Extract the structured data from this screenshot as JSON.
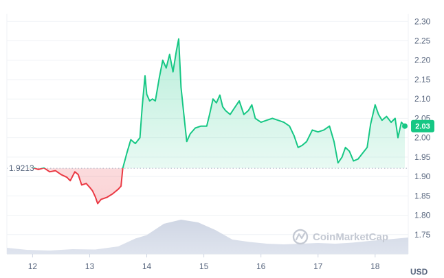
{
  "chart_data": {
    "type": "line",
    "currency": "USD",
    "x_labels": [
      "12",
      "13",
      "14",
      "15",
      "16",
      "17",
      "18"
    ],
    "y_ticks": [
      1.75,
      1.8,
      1.85,
      1.9,
      1.95,
      2.0,
      2.05,
      2.1,
      2.15,
      2.2,
      2.25,
      2.3
    ],
    "y_tick_labels": [
      "1.75",
      "1.80",
      "1.85",
      "1.90",
      "1.95",
      "2.00",
      "2.05",
      "2.10",
      "2.15",
      "2.20",
      "2.25",
      "2.30"
    ],
    "ylim": [
      1.7,
      2.32
    ],
    "xlim": [
      11.55,
      18.58
    ],
    "reference_value": 1.9213,
    "reference_label": "1.9213",
    "current_value": 2.03,
    "current_label": "2.03",
    "colors": {
      "up": "#16c784",
      "down": "#ea3943",
      "volume": "#cfd6e4",
      "grid": "#eff2f5"
    },
    "series": [
      {
        "values": [
          [
            11.9,
            1.921
          ],
          [
            12.0,
            1.923
          ],
          [
            12.1,
            1.918
          ],
          [
            12.2,
            1.922
          ],
          [
            12.3,
            1.912
          ],
          [
            12.4,
            1.915
          ],
          [
            12.5,
            1.905
          ],
          [
            12.6,
            1.898
          ],
          [
            12.66,
            1.889
          ],
          [
            12.74,
            1.912
          ],
          [
            12.8,
            1.905
          ],
          [
            12.86,
            1.878
          ],
          [
            12.94,
            1.882
          ],
          [
            13.0,
            1.872
          ],
          [
            13.05,
            1.863
          ],
          [
            13.1,
            1.847
          ],
          [
            13.14,
            1.83
          ],
          [
            13.2,
            1.841
          ],
          [
            13.3,
            1.846
          ],
          [
            13.4,
            1.855
          ],
          [
            13.5,
            1.867
          ],
          [
            13.55,
            1.875
          ],
          [
            13.58,
            1.921
          ],
          [
            13.65,
            1.96
          ],
          [
            13.72,
            1.995
          ],
          [
            13.8,
            1.985
          ],
          [
            13.88,
            2.0
          ],
          [
            13.92,
            2.08
          ],
          [
            13.97,
            2.16
          ],
          [
            14.0,
            2.112
          ],
          [
            14.05,
            2.095
          ],
          [
            14.1,
            2.1
          ],
          [
            14.15,
            2.095
          ],
          [
            14.22,
            2.155
          ],
          [
            14.28,
            2.2
          ],
          [
            14.34,
            2.18
          ],
          [
            14.4,
            2.215
          ],
          [
            14.46,
            2.17
          ],
          [
            14.52,
            2.225
          ],
          [
            14.56,
            2.255
          ],
          [
            14.6,
            2.13
          ],
          [
            14.65,
            2.06
          ],
          [
            14.7,
            1.99
          ],
          [
            14.76,
            2.01
          ],
          [
            14.85,
            2.025
          ],
          [
            14.95,
            2.03
          ],
          [
            15.05,
            2.03
          ],
          [
            15.1,
            2.06
          ],
          [
            15.16,
            2.1
          ],
          [
            15.22,
            2.09
          ],
          [
            15.28,
            2.11
          ],
          [
            15.33,
            2.08
          ],
          [
            15.38,
            2.07
          ],
          [
            15.46,
            2.06
          ],
          [
            15.55,
            2.08
          ],
          [
            15.62,
            2.095
          ],
          [
            15.7,
            2.06
          ],
          [
            15.78,
            2.07
          ],
          [
            15.84,
            2.085
          ],
          [
            15.9,
            2.05
          ],
          [
            16.0,
            2.04
          ],
          [
            16.1,
            2.045
          ],
          [
            16.2,
            2.05
          ],
          [
            16.3,
            2.045
          ],
          [
            16.4,
            2.04
          ],
          [
            16.5,
            2.03
          ],
          [
            16.58,
            2.005
          ],
          [
            16.65,
            1.975
          ],
          [
            16.72,
            1.98
          ],
          [
            16.8,
            1.99
          ],
          [
            16.9,
            2.02
          ],
          [
            17.0,
            2.015
          ],
          [
            17.1,
            2.02
          ],
          [
            17.2,
            2.03
          ],
          [
            17.28,
            1.99
          ],
          [
            17.35,
            1.935
          ],
          [
            17.42,
            1.95
          ],
          [
            17.48,
            1.975
          ],
          [
            17.55,
            1.965
          ],
          [
            17.62,
            1.94
          ],
          [
            17.7,
            1.945
          ],
          [
            17.78,
            1.96
          ],
          [
            17.86,
            1.975
          ],
          [
            17.92,
            2.035
          ],
          [
            18.0,
            2.085
          ],
          [
            18.06,
            2.06
          ],
          [
            18.12,
            2.045
          ],
          [
            18.2,
            2.055
          ],
          [
            18.28,
            2.04
          ],
          [
            18.35,
            2.05
          ],
          [
            18.4,
            2.0
          ],
          [
            18.46,
            2.04
          ],
          [
            18.52,
            2.03
          ]
        ]
      }
    ],
    "volume": [
      [
        11.55,
        0.18
      ],
      [
        11.9,
        0.12
      ],
      [
        12.3,
        0.1
      ],
      [
        12.7,
        0.14
      ],
      [
        13.1,
        0.13
      ],
      [
        13.5,
        0.22
      ],
      [
        13.8,
        0.45
      ],
      [
        14.0,
        0.55
      ],
      [
        14.3,
        0.88
      ],
      [
        14.6,
        1.0
      ],
      [
        14.9,
        0.92
      ],
      [
        15.2,
        0.7
      ],
      [
        15.5,
        0.42
      ],
      [
        15.8,
        0.35
      ],
      [
        16.1,
        0.3
      ],
      [
        16.4,
        0.28
      ],
      [
        16.7,
        0.3
      ],
      [
        17.0,
        0.32
      ],
      [
        17.3,
        0.3
      ],
      [
        17.6,
        0.33
      ],
      [
        17.9,
        0.38
      ],
      [
        18.2,
        0.42
      ],
      [
        18.58,
        0.48
      ]
    ]
  },
  "watermark": {
    "text": "CoinMarketCap"
  }
}
